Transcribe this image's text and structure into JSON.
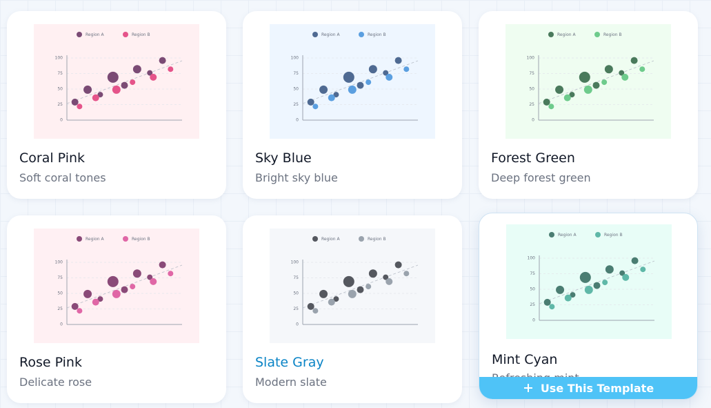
{
  "preview_chart": {
    "type": "scatter",
    "series": [
      {
        "name": "Region A",
        "x": [
          7,
          18,
          29,
          40,
          50,
          61,
          72,
          83
        ],
        "values": [
          29,
          49,
          41,
          69,
          56,
          82,
          76,
          96
        ],
        "sizes": [
          5,
          6,
          4,
          8,
          5,
          6,
          4,
          5
        ]
      },
      {
        "name": "Region B",
        "x": [
          11,
          25,
          43,
          57,
          75,
          90
        ],
        "values": [
          22,
          36,
          49,
          61,
          69,
          82
        ],
        "sizes": [
          4,
          5,
          6,
          4,
          5,
          4
        ]
      }
    ],
    "xlim": [
      0,
      100
    ],
    "ylim": [
      0,
      100
    ],
    "yticks": [
      0,
      25,
      50,
      75,
      100
    ],
    "grid": true
  },
  "cards": [
    {
      "title": "Coral Pink",
      "description": "Soft coral tones",
      "background": "#fff0f2",
      "colors": [
        "#7b4b75",
        "#e5548a"
      ]
    },
    {
      "title": "Sky Blue",
      "description": "Bright sky blue",
      "background": "#eef6ff",
      "colors": [
        "#4f6a92",
        "#5b9fe0"
      ]
    },
    {
      "title": "Forest Green",
      "description": "Deep forest green",
      "background": "#effdf1",
      "colors": [
        "#4a7a5c",
        "#6ecb8c"
      ]
    },
    {
      "title": "Rose Pink",
      "description": "Delicate rose",
      "background": "#fff0f3",
      "colors": [
        "#8a4a78",
        "#e067a6"
      ]
    },
    {
      "title": "Slate Gray",
      "description": "Modern slate",
      "background": "#f5f7fa",
      "colors": [
        "#55585f",
        "#9aa3ad"
      ]
    },
    {
      "title": "Mint Cyan",
      "description": "Refreshing mint",
      "background": "#e8fdf7",
      "colors": [
        "#4a7d72",
        "#5fb8a8"
      ]
    }
  ],
  "hover_action": "Use This Template"
}
